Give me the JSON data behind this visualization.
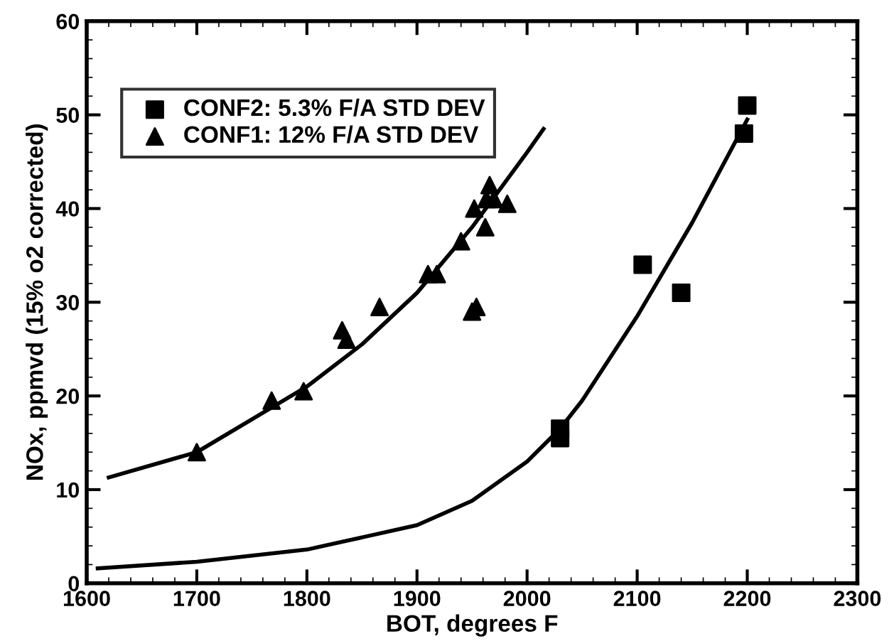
{
  "chart_data": {
    "type": "scatter",
    "xlabel": "BOT, degrees F",
    "ylabel": "NOx, ppmvd (15% o2 corrected)",
    "xlim": [
      1600,
      2300
    ],
    "xticks": [
      1600,
      1700,
      1800,
      1900,
      2000,
      2100,
      2200,
      2300
    ],
    "ylim": [
      0,
      60
    ],
    "yticks": [
      0,
      10,
      20,
      30,
      40,
      50,
      60
    ],
    "grid": false,
    "legend": "top left",
    "series": [
      {
        "name": "CONF2: 5.3% F/A STD DEV",
        "color": "#000000",
        "marker": "square",
        "x": [
          2030,
          2030,
          2105,
          2140,
          2197,
          2200
        ],
        "values": [
          16.5,
          15.5,
          34,
          31,
          48,
          51
        ]
      },
      {
        "name": "CONF1: 12% F/A STD DEV",
        "color": "#000000",
        "marker": "triangle",
        "x": [
          1700,
          1768,
          1797,
          1832,
          1836,
          1866,
          1910,
          1918,
          1940,
          1950,
          1954,
          1952,
          1962,
          1963,
          1966,
          1970,
          1982
        ],
        "values": [
          14,
          19.5,
          20.5,
          27,
          26,
          29.5,
          33,
          33,
          36.5,
          29,
          29.5,
          40,
          38,
          41,
          42.5,
          41,
          40.5
        ]
      },
      {
        "type": "line",
        "color": "#000000",
        "marker": "none",
        "line_style": "solid",
        "x": [
          1620,
          1700,
          1750,
          1800,
          1850,
          1900,
          1950,
          2000,
          2015
        ],
        "values": [
          11.3,
          14,
          17.5,
          21,
          25.5,
          31,
          38,
          46,
          48.5
        ]
      },
      {
        "type": "line",
        "color": "#000000",
        "marker": "none",
        "line_style": "solid",
        "x": [
          1610,
          1700,
          1800,
          1900,
          1950,
          2000,
          2030,
          2050,
          2100,
          2150,
          2200
        ],
        "values": [
          1.6,
          2.3,
          3.6,
          6.2,
          8.8,
          13,
          16.5,
          19.5,
          28.5,
          38.5,
          49.5
        ]
      }
    ]
  }
}
